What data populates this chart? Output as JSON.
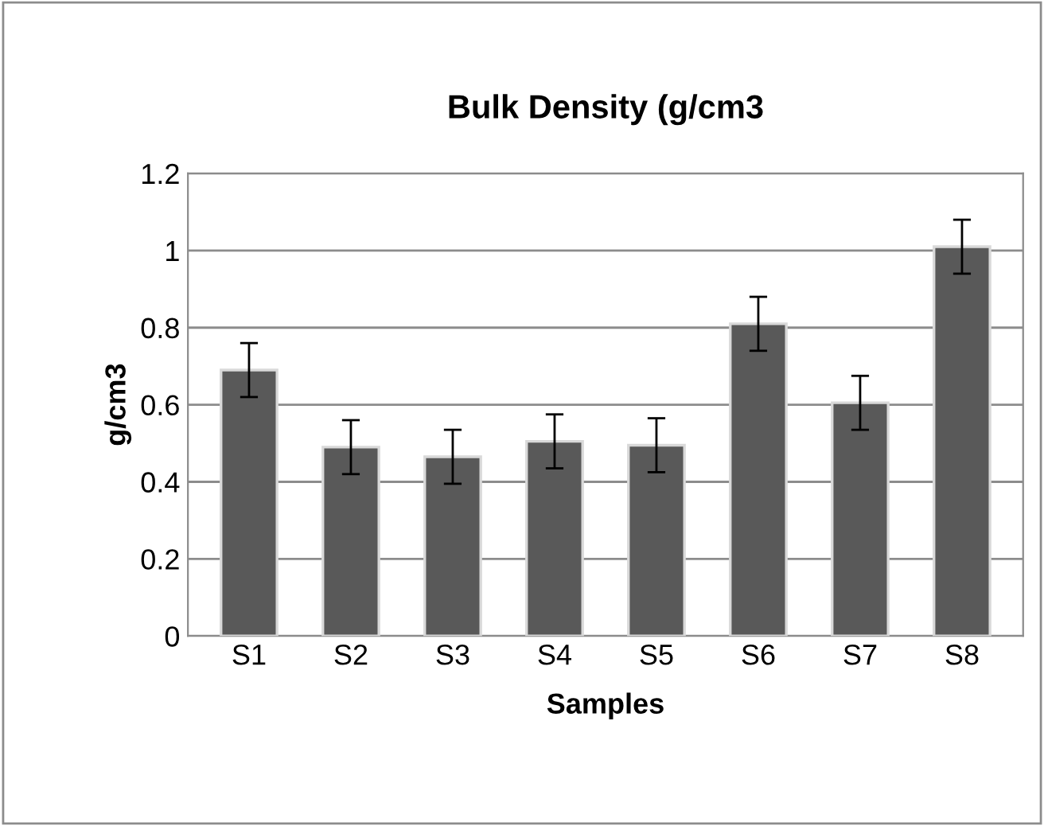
{
  "chart_data": {
    "type": "bar",
    "title": "Bulk Density (g/cm3",
    "xlabel": "Samples",
    "ylabel": "g/cm3",
    "categories": [
      "S1",
      "S2",
      "S3",
      "S4",
      "S5",
      "S6",
      "S7",
      "S8"
    ],
    "values": [
      0.69,
      0.49,
      0.465,
      0.505,
      0.495,
      0.81,
      0.605,
      1.01
    ],
    "errors": [
      0.07,
      0.07,
      0.07,
      0.07,
      0.07,
      0.07,
      0.07,
      0.07
    ],
    "color": "#595959",
    "ylim": [
      0,
      1.2
    ],
    "yticks": [
      0,
      0.2,
      0.4,
      0.6,
      0.8,
      {
        "value": 1,
        "label": "1"
      },
      1.2
    ],
    "grid": "y"
  }
}
